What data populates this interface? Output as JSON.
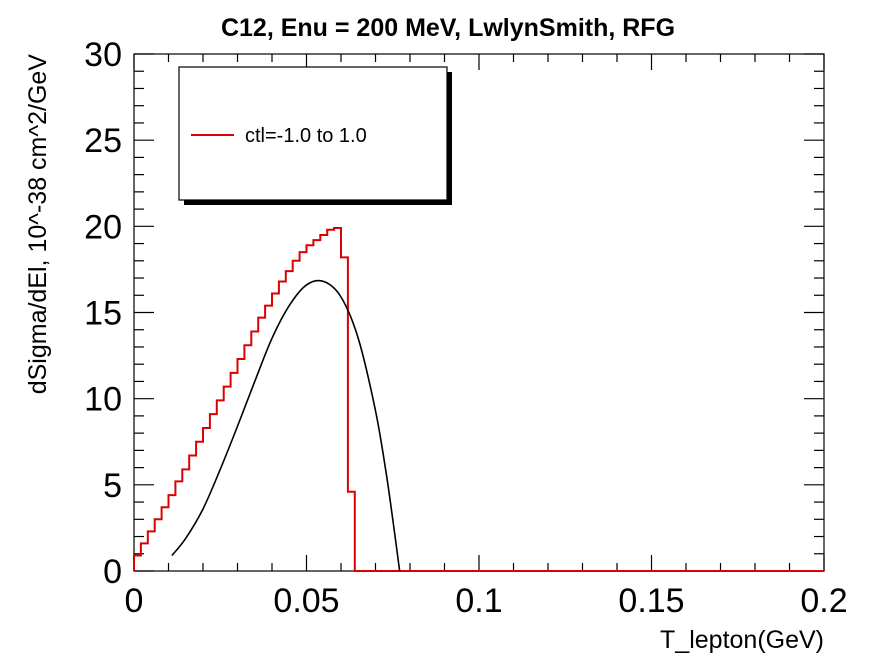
{
  "chart_data": {
    "type": "line",
    "title": "C12, Enu = 200 MeV, LwlynSmith, RFG",
    "xlabel": "T_lepton(GeV)",
    "ylabel": "dSigma/dEl, 10^-38 cm^2/GeV",
    "xlim": [
      0,
      0.2
    ],
    "ylim": [
      0,
      30
    ],
    "x_ticks": [
      0,
      0.05,
      0.1,
      0.15,
      0.2
    ],
    "x_tick_labels": [
      "0",
      "0.05",
      "0.1",
      "0.15",
      "0.2"
    ],
    "y_ticks": [
      0,
      5,
      10,
      15,
      20,
      25,
      30
    ],
    "y_tick_labels": [
      "0",
      "5",
      "10",
      "15",
      "20",
      "25",
      "30"
    ],
    "grid": false,
    "legend_position": "top-left",
    "series": [
      {
        "name": "ctl=-1.0 to 1.0",
        "style": "step",
        "color": "#dd0000",
        "bin_width": 0.002,
        "bin_edges_start": 0,
        "values": [
          0.9,
          1.6,
          2.3,
          3.0,
          3.7,
          4.4,
          5.2,
          5.9,
          6.7,
          7.5,
          8.3,
          9.1,
          9.9,
          10.7,
          11.5,
          12.3,
          13.1,
          13.9,
          14.7,
          15.4,
          16.1,
          16.8,
          17.4,
          18.0,
          18.5,
          18.9,
          19.2,
          19.5,
          19.8,
          19.9,
          18.2,
          4.6,
          0,
          0,
          0,
          0,
          0,
          0,
          0,
          0,
          0,
          0,
          0,
          0,
          0,
          0,
          0,
          0,
          0,
          0,
          0,
          0,
          0,
          0,
          0,
          0,
          0,
          0,
          0,
          0,
          0,
          0,
          0,
          0,
          0,
          0,
          0,
          0,
          0,
          0,
          0,
          0,
          0,
          0,
          0,
          0,
          0,
          0,
          0,
          0,
          0,
          0,
          0,
          0,
          0,
          0,
          0,
          0,
          0,
          0,
          0,
          0,
          0,
          0,
          0,
          0,
          0,
          0,
          0,
          0
        ]
      },
      {
        "style": "smooth",
        "color": "#000000",
        "x": [
          0.011,
          0.015,
          0.02,
          0.025,
          0.03,
          0.035,
          0.04,
          0.045,
          0.05,
          0.055,
          0.06,
          0.065,
          0.07,
          0.073,
          0.075,
          0.077
        ],
        "y": [
          0.9,
          1.9,
          3.6,
          5.9,
          8.4,
          11.0,
          13.5,
          15.4,
          16.6,
          16.8,
          15.9,
          13.5,
          9.3,
          5.8,
          3.0,
          0.0
        ]
      }
    ]
  }
}
